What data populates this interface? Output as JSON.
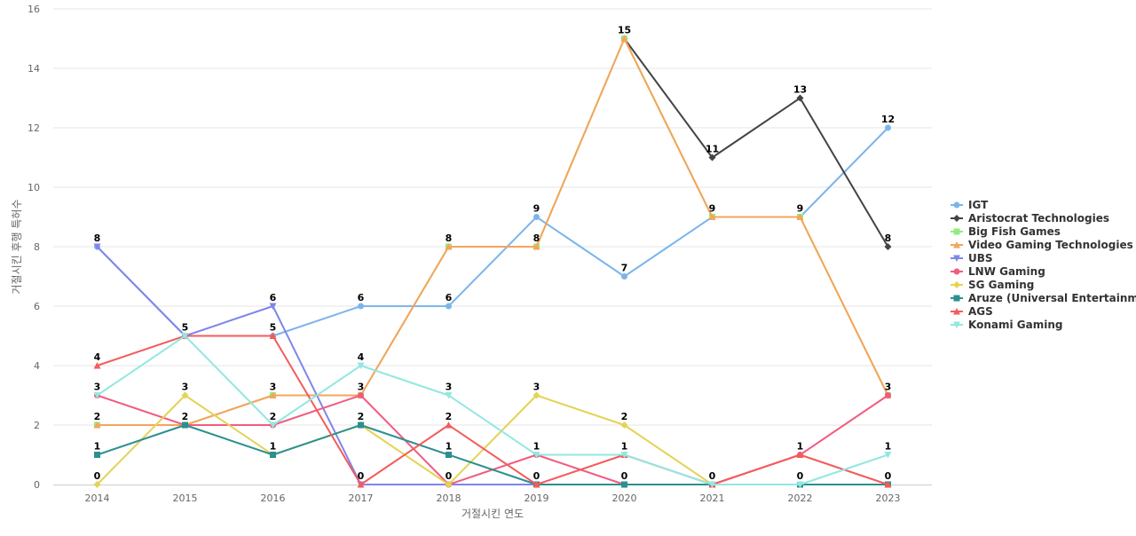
{
  "chart_data": {
    "type": "line",
    "title": "",
    "xlabel": "거절시킨 연도",
    "ylabel": "거절시킨 후행 특허수",
    "x": [
      "2014",
      "2015",
      "2016",
      "2017",
      "2018",
      "2019",
      "2020",
      "2021",
      "2022",
      "2023"
    ],
    "ylim": [
      0,
      16
    ],
    "yticks": [
      0,
      2,
      4,
      6,
      8,
      10,
      12,
      14,
      16
    ],
    "grid": true,
    "legend_position": "right",
    "series": [
      {
        "name": "IGT",
        "color": "#7cb5ec",
        "marker": "circle",
        "values": [
          8,
          5,
          5,
          6,
          6,
          9,
          7,
          9,
          9,
          12
        ]
      },
      {
        "name": "Aristocrat Technologies",
        "color": "#434348",
        "marker": "diamond",
        "values": [
          null,
          null,
          null,
          null,
          null,
          null,
          15,
          11,
          13,
          8
        ]
      },
      {
        "name": "Big Fish Games",
        "color": "#90ed7d",
        "marker": "square",
        "values": [
          2,
          2,
          3,
          3,
          8,
          8,
          15,
          9,
          9,
          3
        ]
      },
      {
        "name": "Video Gaming Technologies",
        "color": "#f7a35c",
        "marker": "triangle",
        "values": [
          2,
          2,
          3,
          3,
          8,
          8,
          15,
          9,
          9,
          3
        ]
      },
      {
        "name": "UBS",
        "color": "#8085e9",
        "marker": "triangle-down",
        "values": [
          8,
          5,
          6,
          0,
          0,
          0,
          0,
          0,
          0,
          0
        ]
      },
      {
        "name": "LNW Gaming",
        "color": "#f15c80",
        "marker": "circle",
        "values": [
          3,
          2,
          2,
          3,
          0,
          1,
          0,
          0,
          1,
          3
        ]
      },
      {
        "name": "SG Gaming",
        "color": "#e4d354",
        "marker": "diamond",
        "values": [
          0,
          3,
          1,
          2,
          0,
          3,
          2,
          0,
          0,
          0
        ]
      },
      {
        "name": "Aruze (Universal Entertainm...",
        "color": "#2b908f",
        "marker": "square",
        "values": [
          1,
          2,
          1,
          2,
          1,
          0,
          0,
          0,
          0,
          0
        ]
      },
      {
        "name": "AGS",
        "color": "#f45b5b",
        "marker": "triangle",
        "values": [
          4,
          5,
          5,
          0,
          2,
          0,
          1,
          0,
          1,
          0
        ]
      },
      {
        "name": "Konami Gaming",
        "color": "#91e8e1",
        "marker": "triangle-down",
        "values": [
          3,
          5,
          2,
          4,
          3,
          1,
          1,
          0,
          0,
          1
        ]
      }
    ],
    "data_labels": {
      "2014": [
        8,
        4,
        3,
        2,
        1,
        0
      ],
      "2015": [
        5,
        3,
        2
      ],
      "2016": [
        6,
        5,
        3,
        2,
        1
      ],
      "2017": [
        6,
        4,
        3,
        2,
        0
      ],
      "2018": [
        8,
        6,
        3,
        2,
        1,
        0
      ],
      "2019": [
        9,
        8,
        3,
        1,
        0
      ],
      "2020": [
        15,
        7,
        2,
        1,
        0
      ],
      "2021": [
        11,
        9,
        0
      ],
      "2022": [
        13,
        9,
        1,
        0
      ],
      "2023": [
        12,
        8,
        3,
        1,
        0
      ]
    }
  }
}
